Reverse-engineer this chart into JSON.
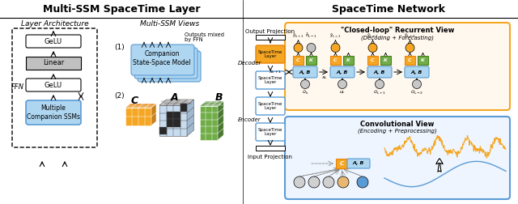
{
  "title_left": "Multi-SSM SpaceTime Layer",
  "title_right": "SpaceTime Network",
  "subtitle_arch": "Layer Architecture",
  "subtitle_views": "Multi-SSM Views",
  "label_ffn": "FFN",
  "label_gelu1": "GeLU",
  "label_linear": "Linear",
  "label_gelu2": "GeLU",
  "label_multi_ssm": "Multiple\nCompanion SSMs",
  "label_companion": "Companion\nState-Space Model",
  "label_outputs_mixed": "Outputs mixed\nby FFN",
  "view1_label": "(1)",
  "view2_label": "(2)",
  "label_C": "C",
  "label_A": "A",
  "label_B": "B",
  "label_closed_loop": "\"Closed-loop\" Recurrent View",
  "label_decoding": "(Decoding + Forecasting)",
  "label_conv_view": "Convolutional View",
  "label_encoding": "(Encoding + Preprocessing)",
  "label_decoder": "Decoder",
  "label_encoder": "Encoder",
  "label_output_proj": "Output Projection",
  "label_input_proj": "Input Projection",
  "label_spacetime": "SpaceTime\nLayer",
  "color_orange": "#F5A623",
  "color_blue_light": "#AED6F1",
  "color_blue": "#5B9BD5",
  "color_blue_dark": "#2E75B6",
  "color_green": "#70AD47",
  "color_gray": "#808080",
  "color_gray_light": "#D3D3D3",
  "color_white": "#FFFFFF",
  "color_orange_border": "#E8840C",
  "bg_color": "#FFFFFF"
}
